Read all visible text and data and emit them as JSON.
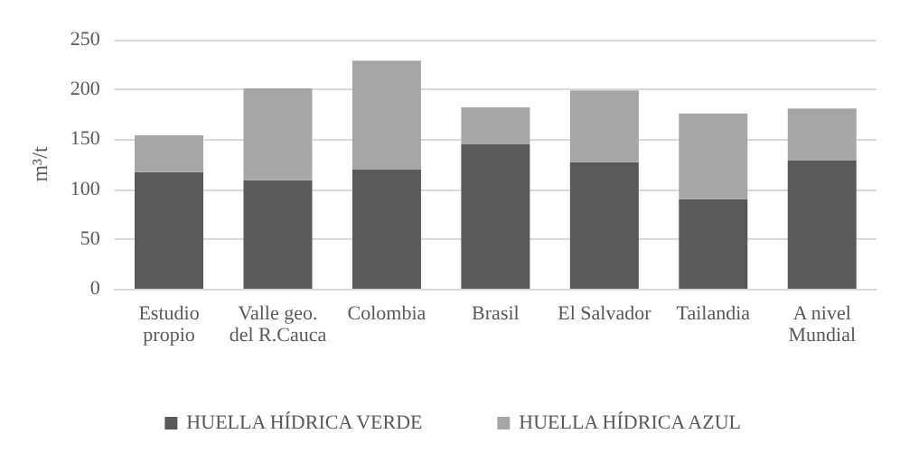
{
  "chart_data": {
    "type": "bar",
    "stacked": true,
    "ylabel": "m³/t",
    "categories": [
      "Estudio\npropio",
      "Valle geo.\ndel R.Cauca",
      "Colombia",
      "Brasil",
      "El Salvador",
      "Tailandia",
      "A nivel\nMundial"
    ],
    "series": [
      {
        "name": "HUELLA HÍDRICA VERDE",
        "color": "#595959",
        "values": [
          117,
          109,
          120,
          145,
          127,
          90,
          129
        ]
      },
      {
        "name": "HUELLA HÍDRICA AZUL",
        "color": "#a6a6a6",
        "values": [
          37,
          92,
          109,
          37,
          72,
          86,
          52
        ]
      }
    ],
    "ylim": [
      0,
      250
    ],
    "yticks": [
      0,
      50,
      100,
      150,
      200,
      250
    ],
    "grid": "y",
    "legend": "bottom"
  }
}
